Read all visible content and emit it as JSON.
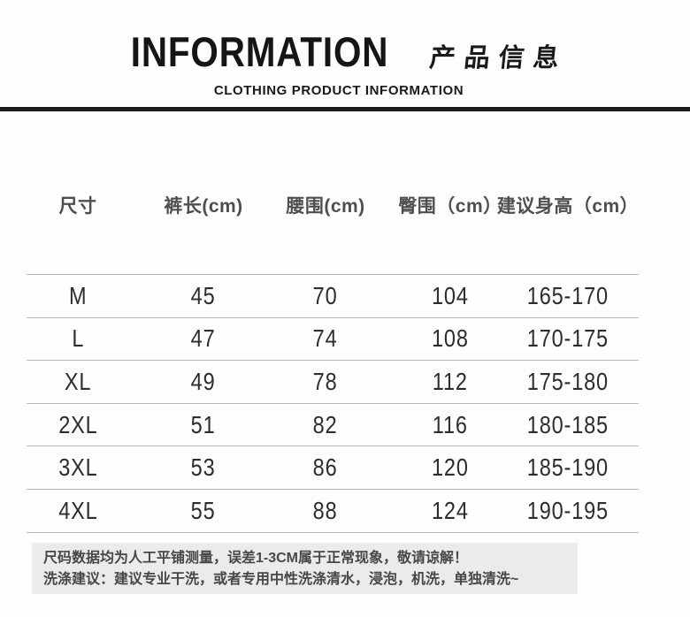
{
  "header": {
    "title_en": "INFORMATION",
    "title_zh": "产品信息",
    "subtitle": "CLOTHING PRODUCT INFORMATION"
  },
  "table": {
    "columns": [
      "尺寸",
      "裤长(cm)",
      "腰围(cm)",
      "臀围（cm）",
      "建议身高（cm）"
    ],
    "rows": [
      {
        "size": "M",
        "pants_length": "45",
        "waist": "70",
        "hip": "104",
        "height_range": "165-170"
      },
      {
        "size": "L",
        "pants_length": "47",
        "waist": "74",
        "hip": "108",
        "height_range": "170-175"
      },
      {
        "size": "XL",
        "pants_length": "49",
        "waist": "78",
        "hip": "112",
        "height_range": "175-180"
      },
      {
        "size": "2XL",
        "pants_length": "51",
        "waist": "82",
        "hip": "116",
        "height_range": "180-185"
      },
      {
        "size": "3XL",
        "pants_length": "53",
        "waist": "86",
        "hip": "120",
        "height_range": "185-190"
      },
      {
        "size": "4XL",
        "pants_length": "55",
        "waist": "88",
        "hip": "124",
        "height_range": "190-195"
      }
    ]
  },
  "notes": {
    "line1": "尺码数据均为人工平铺测量，误差1-3CM属于正常现象，敬请谅解！",
    "line2": "洗涤建议：建议专业干洗，或者专用中性洗涤清水，浸泡，机洗，单独清洗~"
  },
  "colors": {
    "rule": "#1b1b1b",
    "divider": "#b8b8b8",
    "note_background": "#ebebeb",
    "header_text": "#4e4e4e",
    "value_text": "#2d2d2d"
  }
}
